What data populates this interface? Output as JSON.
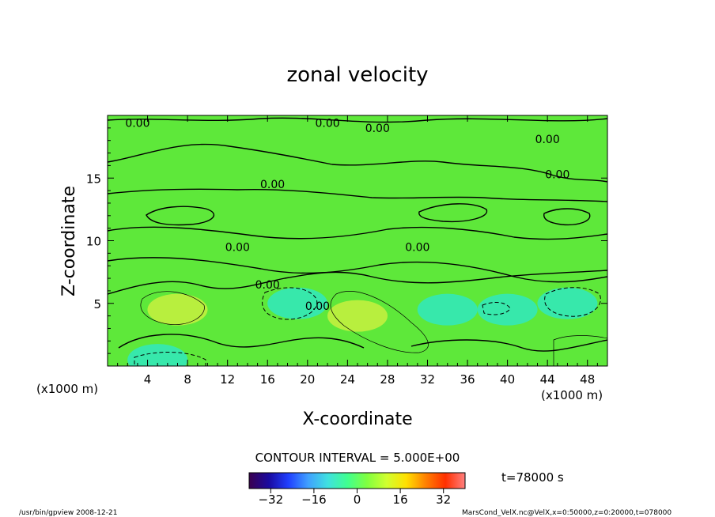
{
  "chart_data": {
    "type": "heatmap",
    "title": "zonal velocity",
    "xlabel": "X-coordinate",
    "ylabel": "Z-coordinate",
    "x_unit_left": "(x1000 m)",
    "x_unit_right": "(x1000 m)",
    "xlim": [
      0,
      50
    ],
    "ylim": [
      0,
      20
    ],
    "x_ticks": [
      4,
      8,
      12,
      16,
      20,
      24,
      28,
      32,
      36,
      40,
      44,
      48
    ],
    "y_ticks": [
      5,
      10,
      15
    ],
    "contour_interval_text": "CONTOUR INTERVAL = 5.000E+00",
    "contour_labels": [
      "0.00",
      "0.00",
      "0.00",
      "0.00",
      "0.00",
      "0.00",
      "0.00",
      "0.00",
      "0.00",
      "0.00"
    ],
    "colorbar": {
      "range": [
        -40,
        40
      ],
      "ticks": [
        -32,
        -16,
        0,
        16,
        32
      ],
      "colors": [
        "#3a0050",
        "#1a0aa0",
        "#2040ff",
        "#40a0ff",
        "#40e0e0",
        "#40ff90",
        "#80ff40",
        "#d0ff30",
        "#ffe000",
        "#ff8000",
        "#ff3000",
        "#ff8080"
      ]
    },
    "time_label": "t=78000 s",
    "anomalies": [
      {
        "x": 7,
        "z": 4.5,
        "value": 6
      },
      {
        "x": 25,
        "z": 4.0,
        "value": 7
      },
      {
        "x": 19,
        "z": 5.0,
        "value": -6
      },
      {
        "x": 46,
        "z": 5.0,
        "value": -8
      },
      {
        "x": 5,
        "z": 0.5,
        "value": -6
      },
      {
        "x": 34,
        "z": 4.5,
        "value": -4
      },
      {
        "x": 40,
        "z": 4.5,
        "value": -3
      }
    ]
  },
  "footer": {
    "left": "/usr/bin/gpview   2008-12-21",
    "right": "MarsCond_VelX.nc@VelX,x=0:50000,z=0:20000,t=078000"
  }
}
